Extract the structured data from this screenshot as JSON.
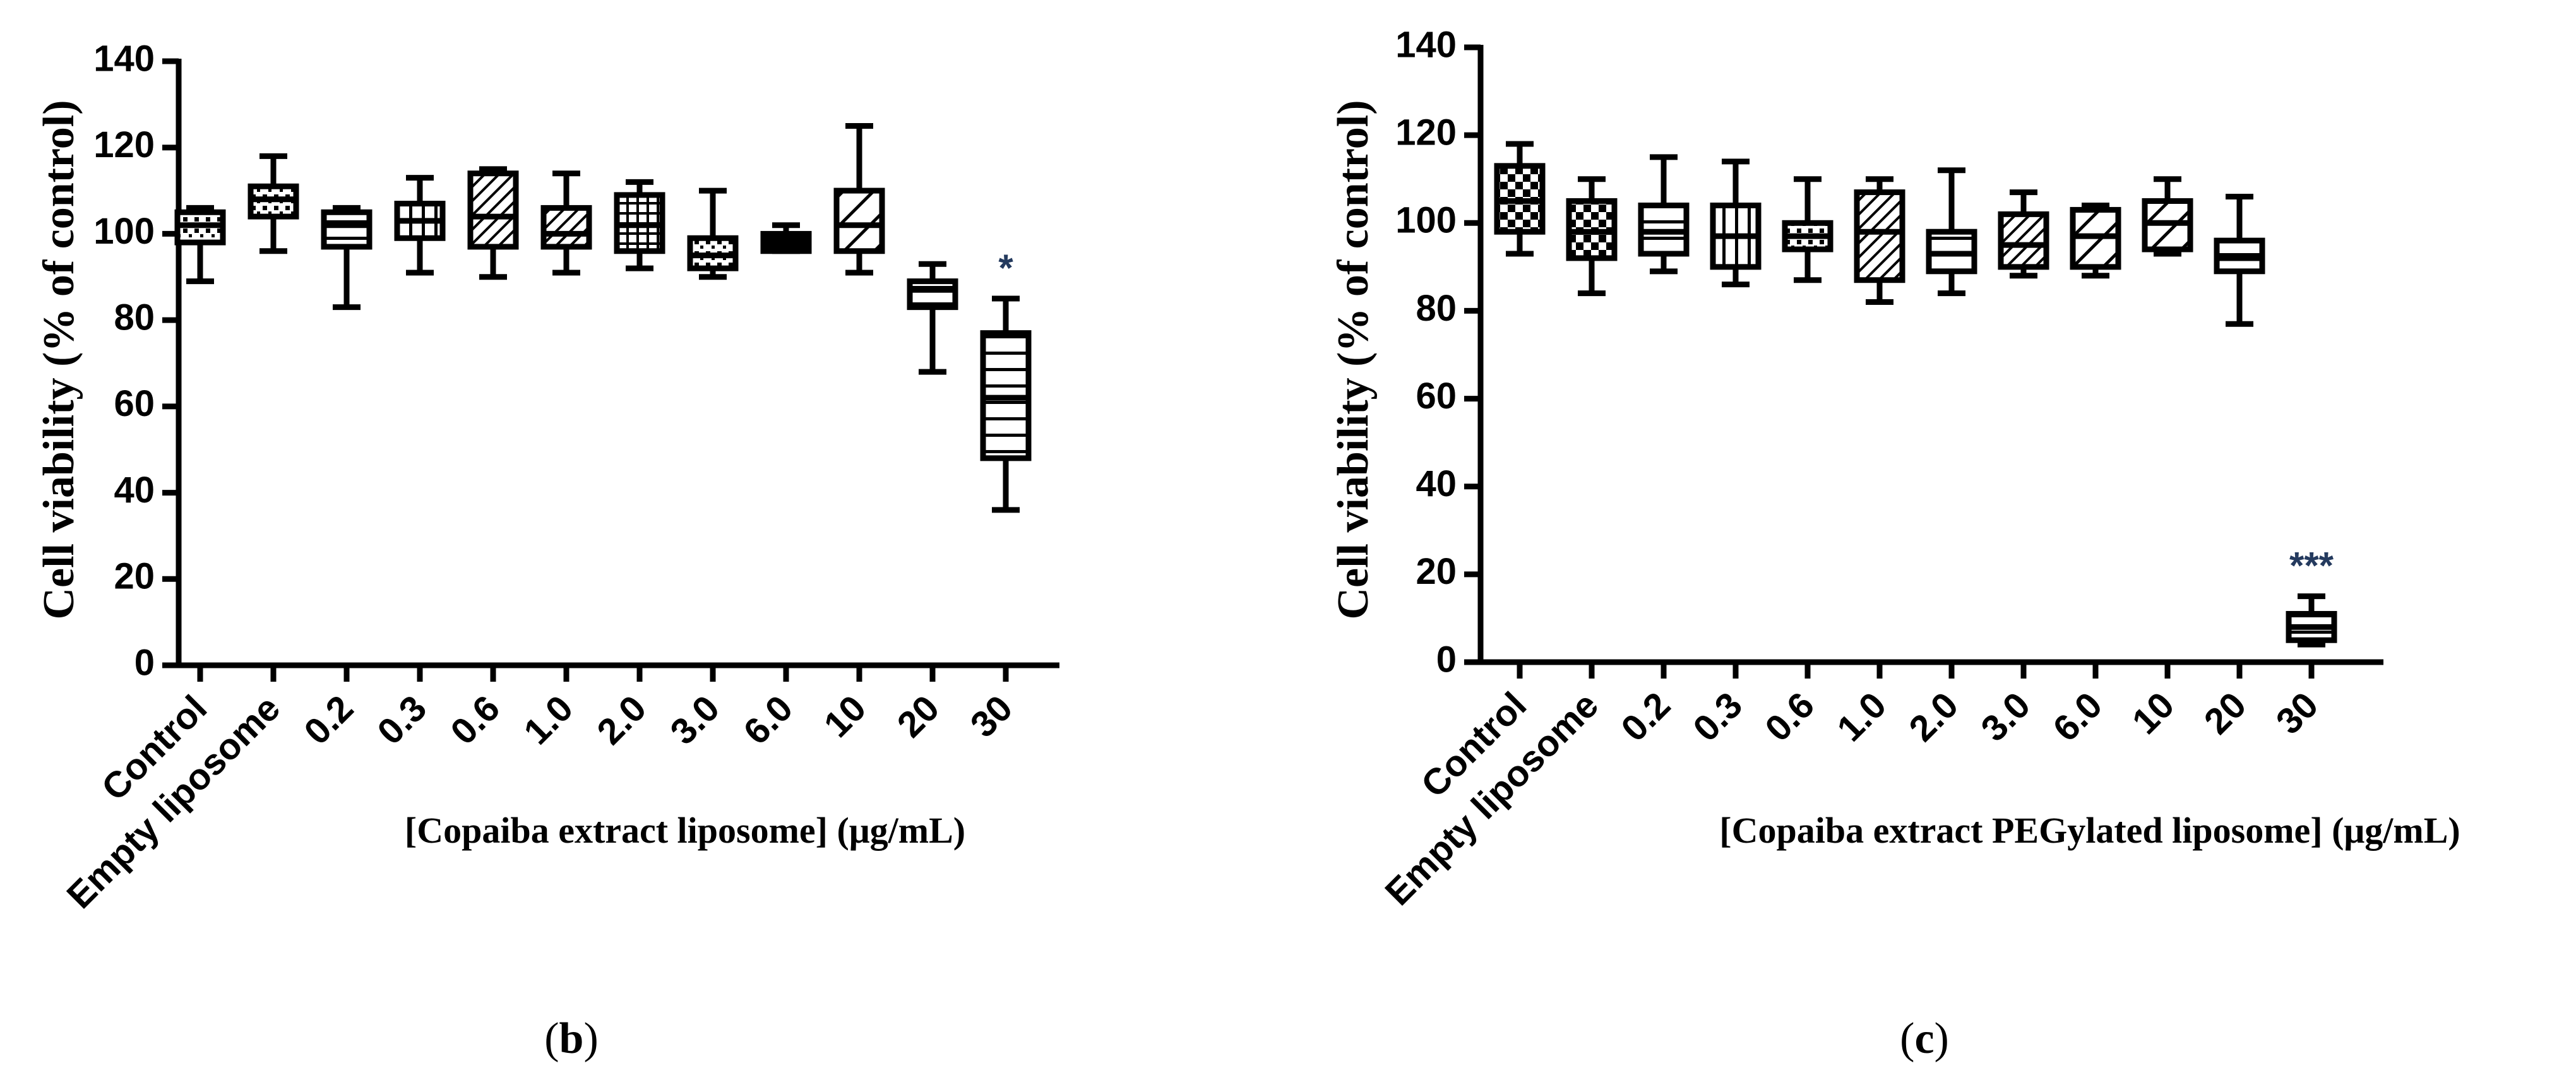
{
  "chart_data": [
    {
      "panel": "b",
      "type": "box",
      "ylabel": "Cell viability (% of control)",
      "xlabel": "[Copaiba extract liposome] (μg/mL)",
      "ylim": [
        0,
        140
      ],
      "yticks": [
        0,
        20,
        40,
        60,
        80,
        100,
        120,
        140
      ],
      "categories": [
        "Control",
        "Empty liposome",
        "0.2",
        "0.3",
        "0.6",
        "1.0",
        "2.0",
        "3.0",
        "6.0",
        "10",
        "20",
        "30"
      ],
      "boxes": [
        {
          "min": 89,
          "q1": 98,
          "median": 102,
          "q3": 105,
          "max": 106,
          "pattern": "dots"
        },
        {
          "min": 96,
          "q1": 104,
          "median": 108,
          "q3": 111,
          "max": 118,
          "pattern": "dots"
        },
        {
          "min": 83,
          "q1": 97,
          "median": 102,
          "q3": 105,
          "max": 106,
          "pattern": "hlines"
        },
        {
          "min": 91,
          "q1": 99,
          "median": 103,
          "q3": 107,
          "max": 113,
          "pattern": "vlines"
        },
        {
          "min": 90,
          "q1": 97,
          "median": 104,
          "q3": 114,
          "max": 115,
          "pattern": "diag"
        },
        {
          "min": 91,
          "q1": 97,
          "median": 100,
          "q3": 106,
          "max": 114,
          "pattern": "diag"
        },
        {
          "min": 92,
          "q1": 96,
          "median": 102,
          "q3": 109,
          "max": 112,
          "pattern": "grid"
        },
        {
          "min": 90,
          "q1": 92,
          "median": 95,
          "q3": 99,
          "max": 110,
          "pattern": "dots"
        },
        {
          "min": 96,
          "q1": 96,
          "median": 98,
          "q3": 100,
          "max": 102,
          "pattern": "solid"
        },
        {
          "min": 91,
          "q1": 96,
          "median": 102,
          "q3": 110,
          "max": 125,
          "pattern": "wide-diag"
        },
        {
          "min": 68,
          "q1": 83,
          "median": 87,
          "q3": 89,
          "max": 93,
          "pattern": "hlines"
        },
        {
          "min": 36,
          "q1": 48,
          "median": 62,
          "q3": 77,
          "max": 85,
          "pattern": "hlines"
        }
      ],
      "annotations": [
        {
          "category": "30",
          "text": "*"
        }
      ],
      "panel_label": {
        "open": "(",
        "letter": "b",
        "close": ")"
      }
    },
    {
      "panel": "c",
      "type": "box",
      "ylabel": "Cell viability (% of control)",
      "xlabel": "[Copaiba extract PEGylated liposome] (μg/mL)",
      "ylim": [
        0,
        140
      ],
      "yticks": [
        0,
        20,
        40,
        60,
        80,
        100,
        120,
        140
      ],
      "categories": [
        "Control",
        "Empty liposome",
        "0.2",
        "0.3",
        "0.6",
        "1.0",
        "2.0",
        "3.0",
        "6.0",
        "10",
        "20",
        "30"
      ],
      "boxes": [
        {
          "min": 93,
          "q1": 98,
          "median": 105,
          "q3": 113,
          "max": 118,
          "pattern": "check"
        },
        {
          "min": 84,
          "q1": 92,
          "median": 98,
          "q3": 105,
          "max": 110,
          "pattern": "check"
        },
        {
          "min": 89,
          "q1": 93,
          "median": 98,
          "q3": 104,
          "max": 115,
          "pattern": "hlines"
        },
        {
          "min": 86,
          "q1": 90,
          "median": 97,
          "q3": 104,
          "max": 114,
          "pattern": "vlines"
        },
        {
          "min": 87,
          "q1": 94,
          "median": 97,
          "q3": 100,
          "max": 110,
          "pattern": "dots"
        },
        {
          "min": 82,
          "q1": 87,
          "median": 98,
          "q3": 107,
          "max": 110,
          "pattern": "diag"
        },
        {
          "min": 84,
          "q1": 89,
          "median": 93,
          "q3": 98,
          "max": 112,
          "pattern": "hlines"
        },
        {
          "min": 88,
          "q1": 90,
          "median": 95,
          "q3": 102,
          "max": 107,
          "pattern": "diag"
        },
        {
          "min": 88,
          "q1": 90,
          "median": 97,
          "q3": 103,
          "max": 104,
          "pattern": "wide-diag"
        },
        {
          "min": 93,
          "q1": 94,
          "median": 100,
          "q3": 105,
          "max": 110,
          "pattern": "wide-diag"
        },
        {
          "min": 77,
          "q1": 89,
          "median": 92,
          "q3": 96,
          "max": 106,
          "pattern": "hlines"
        },
        {
          "min": 4,
          "q1": 5,
          "median": 8,
          "q3": 11,
          "max": 15,
          "pattern": "hlines"
        }
      ],
      "annotations": [
        {
          "category": "30",
          "text": "***"
        }
      ],
      "panel_label": {
        "open": "(",
        "letter": "c",
        "close": ")"
      }
    }
  ]
}
